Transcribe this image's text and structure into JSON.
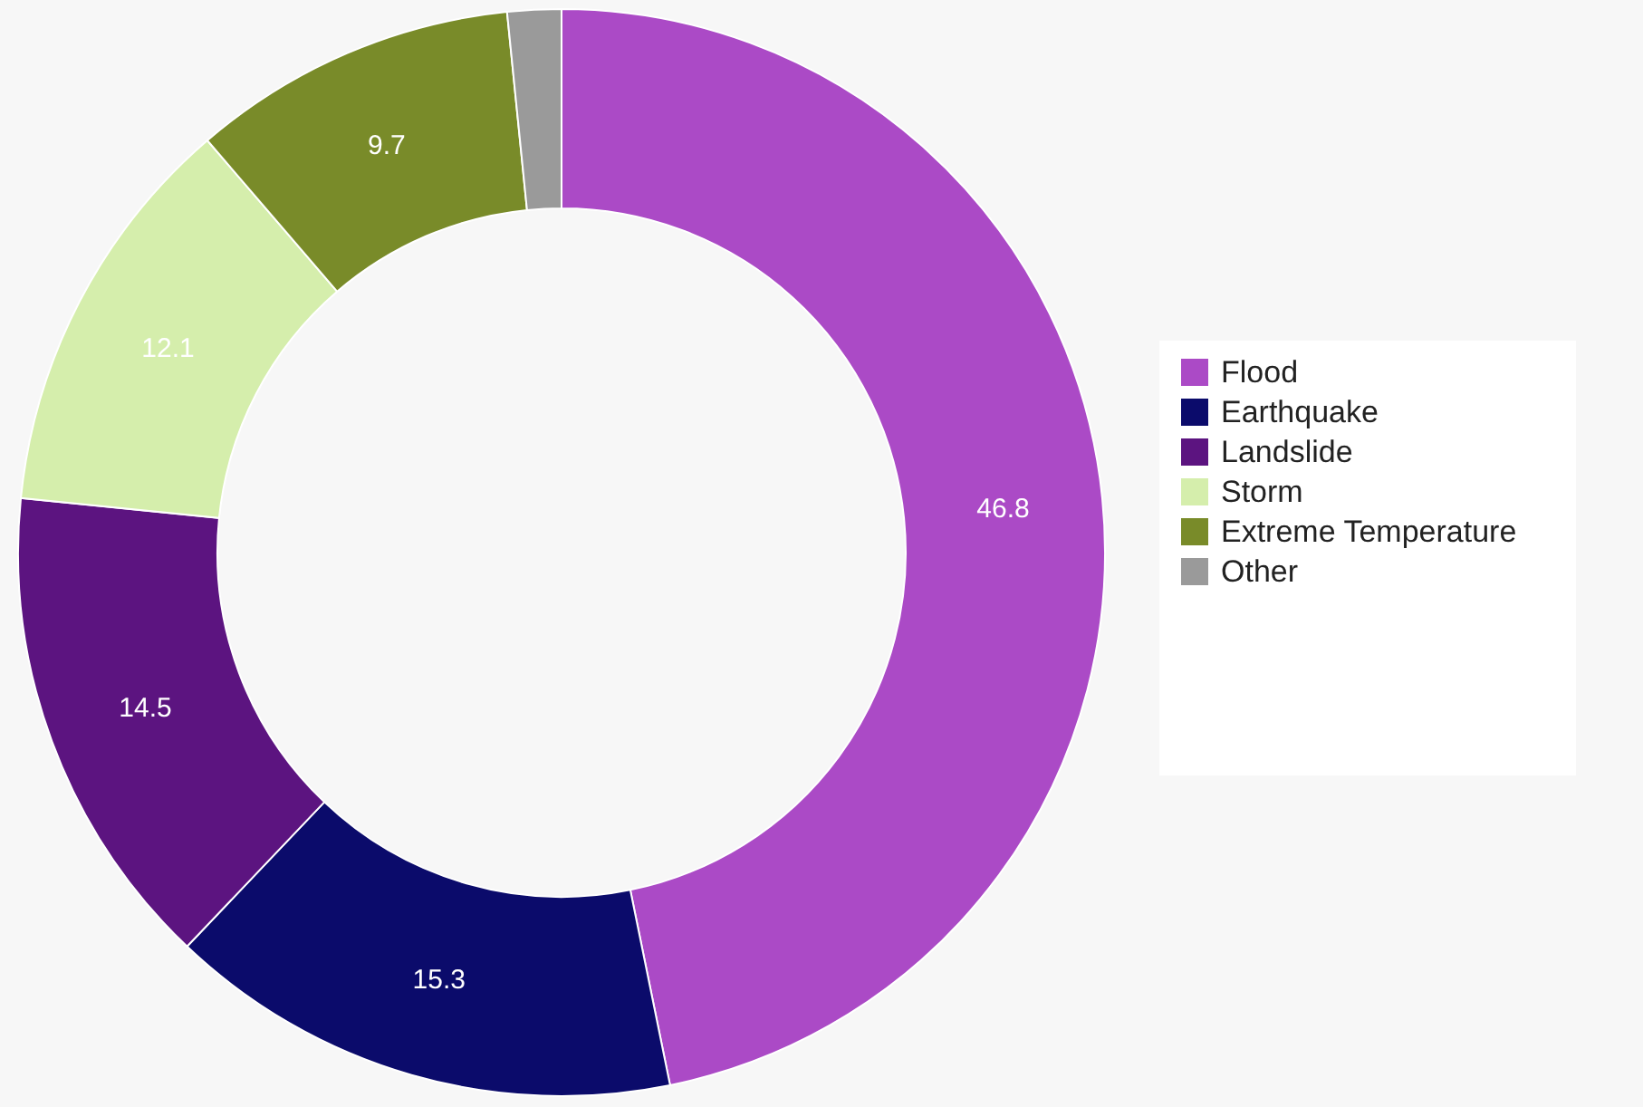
{
  "chart_data": {
    "type": "donut",
    "categories": [
      "Flood",
      "Earthquake",
      "Landslide",
      "Storm",
      "Extreme Temperature",
      "Other"
    ],
    "values": [
      46.8,
      15.3,
      14.5,
      12.1,
      9.7,
      1.6
    ],
    "colors": [
      "#ab4ac6",
      "#0b0b6b",
      "#5c1480",
      "#d5eeac",
      "#798b29",
      "#9a9a9a"
    ],
    "value_labels": [
      "46.8",
      "15.3",
      "14.5",
      "12.1",
      "9.7",
      null
    ],
    "legend": "right"
  }
}
